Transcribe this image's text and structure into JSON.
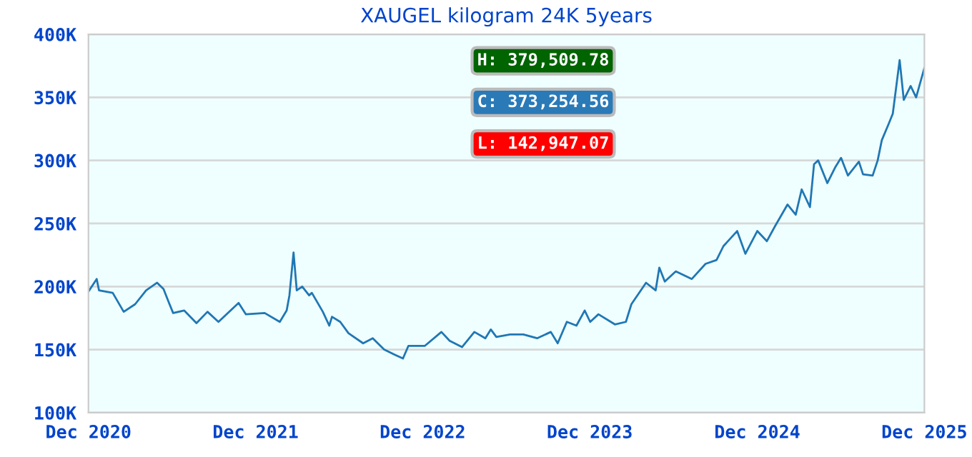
{
  "chart_data": {
    "type": "line",
    "title": "XAUGEL kilogram 24K 5years",
    "x": [
      "2020-12-01",
      "2020-12-19",
      "2020-12-24",
      "2021-01-23",
      "2021-02-16",
      "2021-03-13",
      "2021-04-06",
      "2021-04-30",
      "2021-05-14",
      "2021-05-26",
      "2021-06-04",
      "2021-06-28",
      "2021-07-25",
      "2021-08-18",
      "2021-09-11",
      "2021-10-25",
      "2021-11-10",
      "2021-12-21",
      "2022-01-23",
      "2022-02-07",
      "2022-02-13",
      "2022-02-22",
      "2022-03-01",
      "2022-03-13",
      "2022-03-28",
      "2022-04-03",
      "2022-04-27",
      "2022-05-11",
      "2022-05-17",
      "2022-06-04",
      "2022-06-22",
      "2022-07-24",
      "2022-08-14",
      "2022-09-08",
      "2022-10-01",
      "2022-10-19",
      "2022-10-31",
      "2022-12-06",
      "2023-01-11",
      "2023-01-29",
      "2023-02-25",
      "2023-03-24",
      "2023-04-17",
      "2023-04-29",
      "2023-05-11",
      "2023-06-10",
      "2023-07-09",
      "2023-08-08",
      "2023-09-07",
      "2023-09-22",
      "2023-10-12",
      "2023-11-02",
      "2023-11-20",
      "2023-12-02",
      "2023-12-20",
      "2024-01-25",
      "2024-02-18",
      "2024-03-01",
      "2024-04-02",
      "2024-04-23",
      "2024-05-01",
      "2024-05-13",
      "2024-06-06",
      "2024-07-11",
      "2024-08-10",
      "2024-09-03",
      "2024-09-18",
      "2024-10-18",
      "2024-11-05",
      "2024-12-01",
      "2024-12-22",
      "2025-01-09",
      "2025-02-05",
      "2025-02-23",
      "2025-03-08",
      "2025-03-26",
      "2025-04-04",
      "2025-04-13",
      "2025-05-03",
      "2025-05-21",
      "2025-06-02",
      "2025-06-17",
      "2025-07-11",
      "2025-07-20",
      "2025-08-10",
      "2025-08-21",
      "2025-08-30",
      "2025-09-14",
      "2025-09-23",
      "2025-10-08",
      "2025-10-17",
      "2025-11-01",
      "2025-11-13",
      "2025-12-01"
    ],
    "series": [
      {
        "color": "#1f77b4",
        "values": [
          196000,
          206000,
          197000,
          195000,
          180000,
          186000,
          197000,
          203000,
          198000,
          187000,
          179000,
          181000,
          171000,
          180000,
          172000,
          187000,
          178000,
          179000,
          172000,
          181000,
          193000,
          227000,
          197000,
          200000,
          193000,
          195000,
          180000,
          169000,
          176000,
          172000,
          163000,
          155000,
          159000,
          150000,
          146000,
          142947,
          153000,
          153000,
          164000,
          157000,
          152000,
          164000,
          159000,
          166000,
          160000,
          162000,
          162000,
          159000,
          164000,
          155000,
          172000,
          169000,
          181000,
          172000,
          178000,
          170000,
          172000,
          186000,
          203000,
          197000,
          215000,
          204000,
          212000,
          206000,
          218000,
          221000,
          232000,
          244000,
          226000,
          244000,
          236000,
          248000,
          265000,
          257000,
          277000,
          263000,
          297000,
          300000,
          282000,
          295000,
          302000,
          288000,
          299000,
          289000,
          288000,
          300000,
          316000,
          329000,
          337000,
          379510,
          348000,
          359000,
          350000,
          373255
        ]
      }
    ],
    "xlim": [
      "2020-12-01",
      "2025-12-01"
    ],
    "xticks": [
      {
        "value": "2020-12-01",
        "label": "Dec 2020"
      },
      {
        "value": "2021-12-01",
        "label": "Dec 2021"
      },
      {
        "value": "2022-12-01",
        "label": "Dec 2022"
      },
      {
        "value": "2023-12-01",
        "label": "Dec 2023"
      },
      {
        "value": "2024-12-01",
        "label": "Dec 2024"
      },
      {
        "value": "2025-12-01",
        "label": "Dec 2025"
      }
    ],
    "ylim": [
      100000,
      400000
    ],
    "yticks": [
      {
        "value": 100000,
        "label": "100K"
      },
      {
        "value": 150000,
        "label": "150K"
      },
      {
        "value": 200000,
        "label": "200K"
      },
      {
        "value": 250000,
        "label": "250K"
      },
      {
        "value": 300000,
        "label": "300K"
      },
      {
        "value": 350000,
        "label": "350K"
      },
      {
        "value": 400000,
        "label": "400K"
      }
    ],
    "grid": "y",
    "annotations": [
      "H: 379,509.78",
      "C: 373,254.56",
      "L: 142,947.07"
    ]
  }
}
